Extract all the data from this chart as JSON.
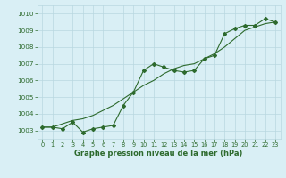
{
  "line1_x": [
    0,
    1,
    2,
    3,
    4,
    5,
    6,
    7,
    8,
    9,
    10,
    11,
    12,
    13,
    14,
    15,
    16,
    17,
    18,
    19,
    20,
    21,
    22,
    23
  ],
  "line1_y": [
    1003.2,
    1003.2,
    1003.1,
    1003.5,
    1002.9,
    1003.1,
    1003.2,
    1003.3,
    1004.5,
    1005.3,
    1006.6,
    1007.0,
    1006.8,
    1006.6,
    1006.5,
    1006.6,
    1007.3,
    1007.5,
    1008.8,
    1009.1,
    1009.3,
    1009.3,
    1009.7,
    1009.5
  ],
  "line2_y": [
    1003.2,
    1003.2,
    1003.4,
    1003.6,
    1003.7,
    1003.9,
    1004.2,
    1004.5,
    1004.9,
    1005.3,
    1005.7,
    1006.0,
    1006.4,
    1006.7,
    1006.9,
    1007.0,
    1007.3,
    1007.6,
    1008.0,
    1008.5,
    1009.0,
    1009.2,
    1009.4,
    1009.5
  ],
  "line_color": "#2d6a2d",
  "bg_color": "#d9eff5",
  "grid_color": "#b8d8e0",
  "xlabel": "Graphe pression niveau de la mer (hPa)",
  "ylim_min": 1002.5,
  "ylim_max": 1010.5,
  "xlim_min": -0.5,
  "xlim_max": 23.5,
  "yticks": [
    1003,
    1004,
    1005,
    1006,
    1007,
    1008,
    1009,
    1010
  ],
  "xticks": [
    0,
    1,
    2,
    3,
    4,
    5,
    6,
    7,
    8,
    9,
    10,
    11,
    12,
    13,
    14,
    15,
    16,
    17,
    18,
    19,
    20,
    21,
    22,
    23
  ]
}
